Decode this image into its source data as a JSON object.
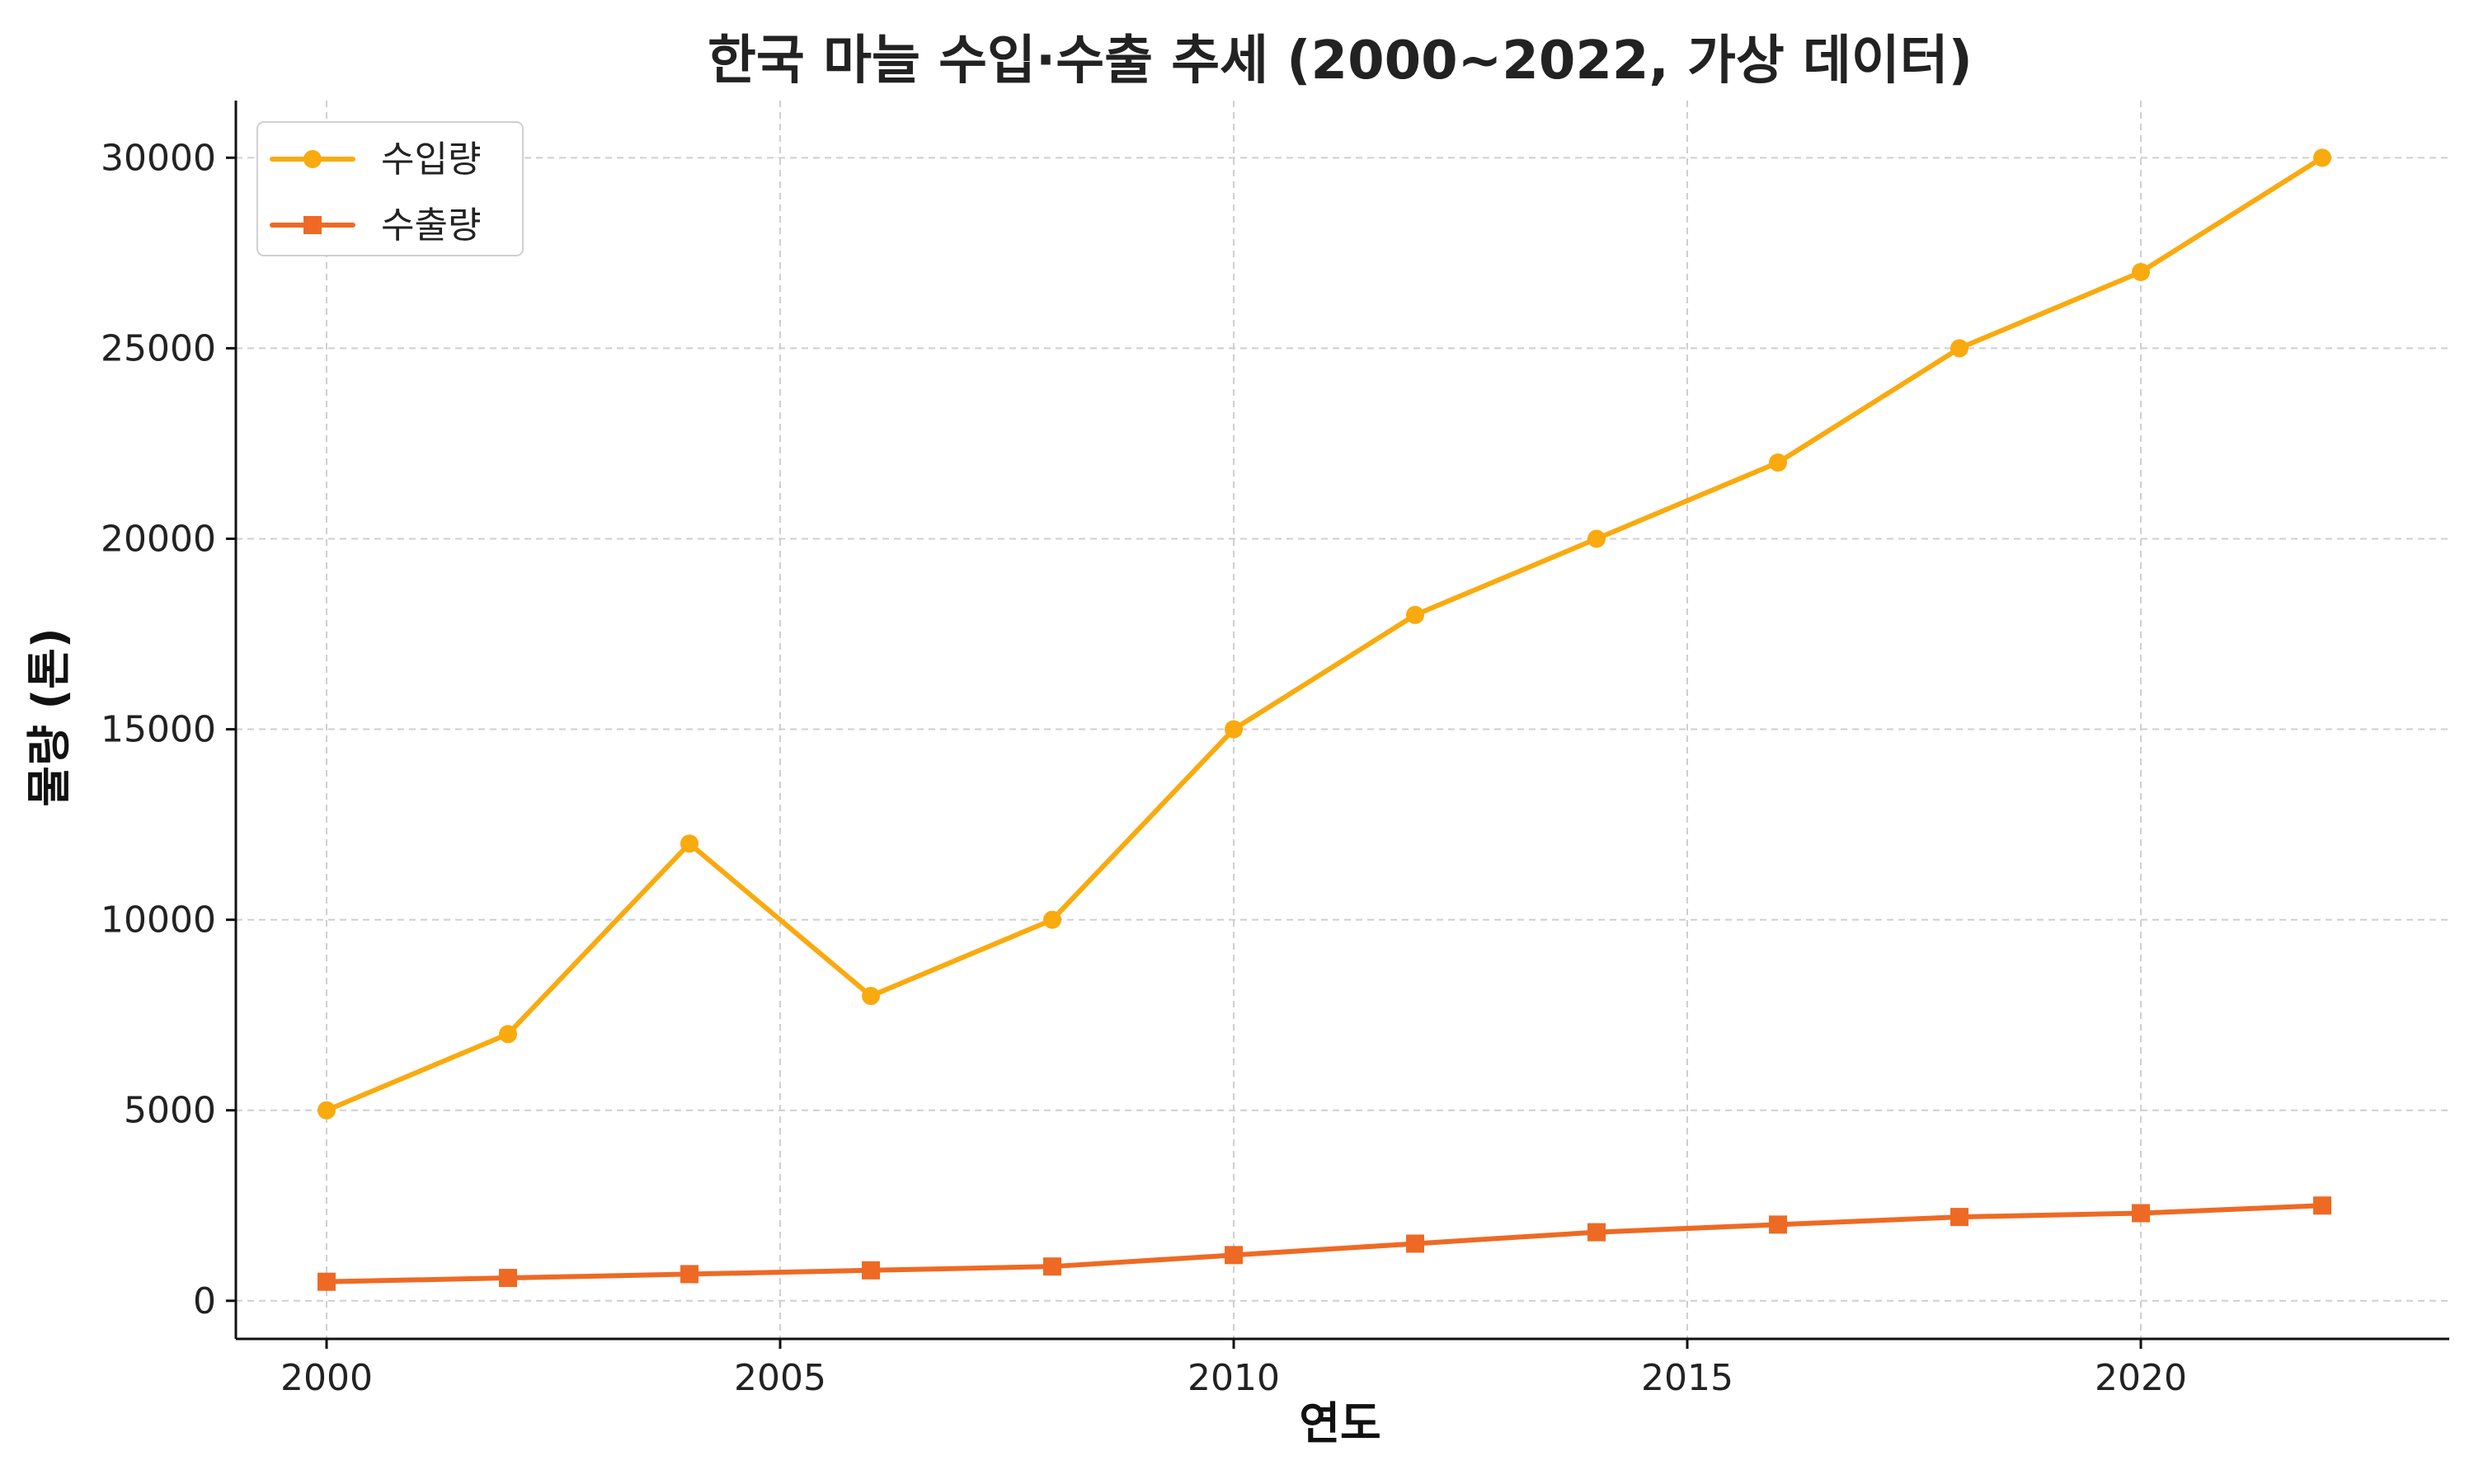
{
  "chart_data": {
    "type": "line",
    "title": "한국 마늘 수입·수출 추세 (2000~2022, 가상 데이터)",
    "xlabel": "연도",
    "ylabel": "물량 (톤)",
    "x": [
      2000,
      2002,
      2004,
      2006,
      2008,
      2010,
      2012,
      2014,
      2016,
      2018,
      2020,
      2022
    ],
    "xlim": [
      1999,
      2023.4
    ],
    "ylim": [
      -1000,
      31500
    ],
    "xticks": [
      2000,
      2005,
      2010,
      2015,
      2020
    ],
    "yticks": [
      0,
      5000,
      10000,
      15000,
      20000,
      25000,
      30000
    ],
    "grid": true,
    "legend_position": "top-left",
    "series": [
      {
        "name": "수입량",
        "color": "#F9AA0E",
        "marker": "circle",
        "values": [
          5000,
          7000,
          12000,
          8000,
          10000,
          15000,
          18000,
          20000,
          22000,
          25000,
          27000,
          30000
        ]
      },
      {
        "name": "수출량",
        "color": "#EE6A24",
        "marker": "square",
        "values": [
          500,
          600,
          700,
          800,
          900,
          1200,
          1500,
          1800,
          2000,
          2200,
          2300,
          2500
        ]
      }
    ]
  }
}
